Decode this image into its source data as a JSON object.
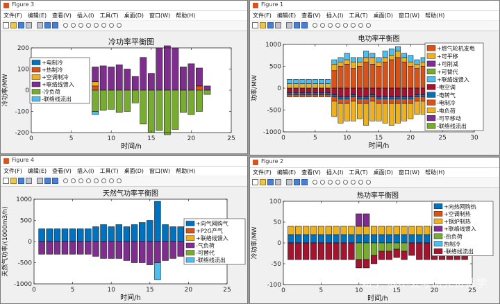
{
  "menu_items": [
    "文件(F)",
    "编辑(E)",
    "查看(V)",
    "插入(I)",
    "工具(T)",
    "桌面(D)",
    "窗口(W)",
    "帮助(H)"
  ],
  "watermark": "知乎 @不会考研元贾数学",
  "colors": {
    "blue": "#0072bd",
    "orange": "#d95319",
    "yellow": "#edb120",
    "purple": "#7e2f8e",
    "green": "#77ac30",
    "cyan": "#4dbeee",
    "red": "#a2142f"
  },
  "windows": [
    {
      "id": "fig3",
      "title": "Figure 3",
      "chart_data": {
        "type": "bar",
        "stacked": true,
        "title": "冷功率平衡图",
        "xlabel": "时间/h",
        "ylabel": "冷功率/MW",
        "xlim": [
          0,
          25
        ],
        "ylim": [
          -200,
          200
        ],
        "xticks": [
          0,
          5,
          10,
          15,
          20,
          25
        ],
        "yticks": [
          -200,
          -100,
          0,
          100,
          200
        ],
        "legend_position": "top-left",
        "x": [
          8,
          9,
          10,
          11,
          12,
          13,
          14,
          15,
          16,
          17,
          18,
          19,
          20,
          21,
          22
        ],
        "series": [
          {
            "name": "+电制冷",
            "color": "blue",
            "values": [
              0,
              0,
              0,
              0,
              0,
              0,
              0,
              0,
              0,
              0,
              0,
              0,
              0,
              0,
              0
            ]
          },
          {
            "name": "+热制冷",
            "color": "orange",
            "values": [
              20,
              0,
              0,
              0,
              0,
              0,
              0,
              0,
              0,
              0,
              0,
              0,
              0,
              20,
              0
            ]
          },
          {
            "name": "+空调制冷",
            "color": "yellow",
            "values": [
              20,
              0,
              0,
              0,
              0,
              0,
              0,
              0,
              0,
              0,
              0,
              0,
              0,
              0,
              0
            ]
          },
          {
            "name": "+联络线馈入",
            "color": "purple",
            "values": [
              70,
              115,
              110,
              120,
              100,
              65,
              155,
              80,
              200,
              210,
              200,
              110,
              125,
              85,
              20
            ]
          },
          {
            "name": "-冷负荷",
            "color": "green",
            "values": [
              -100,
              -95,
              -90,
              -105,
              -100,
              -60,
              -160,
              -200,
              -190,
              -210,
              -185,
              -105,
              -115,
              -100,
              -20
            ]
          },
          {
            "name": "-联络线流出",
            "color": "cyan",
            "values": [
              -15,
              0,
              0,
              0,
              0,
              0,
              0,
              0,
              0,
              0,
              0,
              0,
              0,
              0,
              0
            ]
          }
        ]
      }
    },
    {
      "id": "fig1",
      "title": "Figure 1",
      "chart_data": {
        "type": "bar",
        "stacked": true,
        "title": "电功率平衡图",
        "xlabel": "时间/h",
        "ylabel": "功率/MW",
        "xlim": [
          0,
          30
        ],
        "ylim": [
          -1000,
          1000
        ],
        "xticks": [
          0,
          5,
          10,
          15,
          20,
          25,
          30
        ],
        "yticks": [
          -1000,
          -500,
          0,
          500,
          1000
        ],
        "legend_position": "right",
        "x": [
          1,
          2,
          3,
          4,
          5,
          6,
          7,
          8,
          9,
          10,
          11,
          12,
          13,
          14,
          15,
          16,
          17,
          18,
          19,
          20,
          21,
          22,
          23,
          24
        ],
        "series": [
          {
            "name": "+燃气轮机发电",
            "color": "orange",
            "values": [
              0,
              0,
              0,
              0,
              0,
              0,
              0,
              400,
              500,
              550,
              450,
              500,
              600,
              550,
              500,
              600,
              650,
              700,
              600,
              500,
              450,
              500,
              0,
              0
            ]
          },
          {
            "name": "+可平移",
            "color": "yellow",
            "values": [
              100,
              100,
              100,
              100,
              100,
              100,
              100,
              150,
              100,
              100,
              150,
              100,
              100,
              150,
              100,
              100,
              100,
              150,
              100,
              100,
              100,
              100,
              50,
              0
            ]
          },
          {
            "name": "+可削减",
            "color": "purple",
            "values": [
              0,
              0,
              0,
              0,
              0,
              0,
              0,
              0,
              0,
              0,
              0,
              0,
              0,
              0,
              0,
              0,
              0,
              0,
              0,
              0,
              0,
              0,
              0,
              0
            ]
          },
          {
            "name": "+可替代",
            "color": "green",
            "values": [
              0,
              0,
              0,
              0,
              0,
              0,
              0,
              0,
              0,
              0,
              0,
              0,
              0,
              0,
              0,
              0,
              0,
              0,
              0,
              0,
              0,
              0,
              0,
              0
            ]
          },
          {
            "name": "+联络线馈入",
            "color": "cyan",
            "values": [
              100,
              100,
              100,
              100,
              100,
              100,
              100,
              100,
              100,
              150,
              100,
              100,
              150,
              100,
              100,
              150,
              150,
              100,
              100,
              150,
              100,
              100,
              100,
              0
            ]
          },
          {
            "name": "-电空调",
            "color": "red",
            "values": [
              -100,
              -100,
              -100,
              -100,
              -100,
              -100,
              -100,
              -150,
              -200,
              -200,
              -150,
              -200,
              -200,
              -150,
              -200,
              -200,
              -200,
              -200,
              -200,
              -200,
              -150,
              -150,
              -50,
              0
            ]
          },
          {
            "name": "-电转气",
            "color": "blue",
            "values": [
              -50,
              -50,
              -50,
              -50,
              -50,
              -50,
              -50,
              -50,
              -50,
              -50,
              -50,
              -50,
              -50,
              -50,
              -50,
              -50,
              -50,
              -50,
              -50,
              -50,
              -50,
              -50,
              -50,
              0
            ]
          },
          {
            "name": "-电制冷",
            "color": "orange",
            "values": [
              -50,
              -50,
              -50,
              -50,
              -50,
              -50,
              -50,
              -100,
              -100,
              -100,
              -100,
              -100,
              -100,
              -100,
              -100,
              -100,
              -100,
              -100,
              -100,
              -100,
              -100,
              -100,
              -50,
              0
            ]
          },
          {
            "name": "-电负荷",
            "color": "yellow",
            "values": [
              0,
              0,
              0,
              0,
              0,
              0,
              0,
              -350,
              -450,
              -400,
              -450,
              -350,
              -500,
              -450,
              -400,
              -450,
              -500,
              -450,
              -400,
              -350,
              -300,
              -300,
              0,
              0
            ]
          },
          {
            "name": "-可平移动",
            "color": "purple",
            "values": [
              0,
              0,
              0,
              0,
              0,
              0,
              0,
              0,
              0,
              0,
              0,
              0,
              0,
              0,
              0,
              0,
              0,
              0,
              0,
              0,
              0,
              0,
              0,
              0
            ]
          },
          {
            "name": "-联络线流出",
            "color": "green",
            "values": [
              0,
              0,
              0,
              0,
              0,
              0,
              0,
              0,
              0,
              0,
              0,
              0,
              0,
              0,
              0,
              0,
              0,
              0,
              0,
              0,
              0,
              0,
              0,
              0
            ]
          }
        ]
      }
    },
    {
      "id": "fig4",
      "title": "Figure 4",
      "chart_data": {
        "type": "bar",
        "stacked": true,
        "title": "天然气功率平衡图",
        "xlabel": "时间/h",
        "ylabel": "天然气功率/(1000m3/h)",
        "xlim": [
          0,
          25
        ],
        "ylim": [
          -1000,
          1000
        ],
        "xticks": [
          0,
          5,
          10,
          15,
          20,
          25
        ],
        "yticks": [
          -1000,
          -500,
          0,
          500,
          1000
        ],
        "legend_position": "top-right",
        "x": [
          1,
          2,
          3,
          4,
          5,
          6,
          7,
          8,
          9,
          10,
          11,
          12,
          13,
          14,
          15,
          16,
          17,
          18,
          19,
          20,
          21,
          22,
          23,
          24
        ],
        "series": [
          {
            "name": "+向气网购气",
            "color": "blue",
            "values": [
              300,
              300,
              300,
              300,
              300,
              300,
              300,
              350,
              400,
              350,
              400,
              350,
              400,
              450,
              500,
              950,
              400,
              350,
              350,
              400,
              350,
              300,
              300,
              300
            ]
          },
          {
            "name": "+P2G产气",
            "color": "orange",
            "values": [
              0,
              0,
              0,
              0,
              0,
              0,
              0,
              0,
              0,
              0,
              0,
              0,
              0,
              0,
              0,
              0,
              0,
              0,
              0,
              0,
              0,
              0,
              0,
              0
            ]
          },
          {
            "name": "+联络线馈入",
            "color": "yellow",
            "values": [
              0,
              0,
              0,
              0,
              0,
              0,
              0,
              0,
              0,
              0,
              0,
              0,
              0,
              0,
              0,
              0,
              0,
              0,
              0,
              0,
              0,
              0,
              0,
              0
            ]
          },
          {
            "name": "-气负荷",
            "color": "purple",
            "values": [
              -300,
              -300,
              -300,
              -300,
              -300,
              -300,
              -300,
              -350,
              -400,
              -400,
              -400,
              -450,
              -500,
              -500,
              -550,
              -500,
              -450,
              -400,
              -350,
              -350,
              -300,
              -300,
              -150,
              -150
            ]
          },
          {
            "name": "-可替代",
            "color": "green",
            "values": [
              0,
              0,
              0,
              0,
              0,
              0,
              0,
              0,
              0,
              0,
              0,
              0,
              0,
              0,
              0,
              0,
              0,
              0,
              0,
              0,
              0,
              0,
              0,
              0
            ]
          },
          {
            "name": "-联络线流出",
            "color": "cyan",
            "values": [
              0,
              0,
              0,
              0,
              0,
              0,
              0,
              0,
              0,
              0,
              0,
              0,
              0,
              0,
              0,
              -400,
              0,
              0,
              0,
              0,
              -150,
              -150,
              -200,
              -150
            ]
          }
        ]
      }
    },
    {
      "id": "fig2",
      "title": "Figure 2",
      "chart_data": {
        "type": "bar",
        "stacked": true,
        "title": "热功率平衡图",
        "xlabel": "时间/h",
        "ylabel": "冷功率/MW",
        "xlim": [
          0,
          25
        ],
        "ylim": [
          -100,
          100
        ],
        "xticks": [
          0,
          5,
          10,
          15,
          20,
          25
        ],
        "yticks": [
          -100,
          -50,
          0,
          50,
          100
        ],
        "legend_position": "right",
        "x": [
          1,
          2,
          3,
          4,
          5,
          6,
          7,
          8,
          9,
          10,
          11,
          12,
          13,
          14,
          15,
          16,
          17,
          18,
          19,
          20,
          21,
          22,
          23,
          24
        ],
        "series": [
          {
            "name": "+向热网购热",
            "color": "blue",
            "values": [
              20,
              20,
              20,
              20,
              20,
              20,
              20,
              20,
              20,
              20,
              20,
              20,
              20,
              20,
              20,
              20,
              20,
              20,
              20,
              20,
              20,
              20,
              20,
              20
            ]
          },
          {
            "name": "+空调制热",
            "color": "orange",
            "values": [
              0,
              0,
              0,
              0,
              0,
              0,
              0,
              0,
              0,
              0,
              0,
              0,
              0,
              0,
              0,
              0,
              0,
              0,
              0,
              0,
              0,
              0,
              0,
              0
            ]
          },
          {
            "name": "+锅炉制热",
            "color": "yellow",
            "values": [
              20,
              20,
              20,
              20,
              20,
              20,
              20,
              20,
              20,
              20,
              20,
              20,
              20,
              20,
              20,
              20,
              20,
              20,
              20,
              20,
              20,
              20,
              20,
              20
            ]
          },
          {
            "name": "+联络线馈入",
            "color": "purple",
            "values": [
              0,
              0,
              0,
              0,
              0,
              0,
              0,
              0,
              0,
              30,
              30,
              0,
              0,
              0,
              0,
              0,
              0,
              0,
              0,
              0,
              0,
              0,
              0,
              0
            ]
          },
          {
            "name": "-热负荷",
            "color": "green",
            "values": [
              0,
              0,
              0,
              0,
              0,
              0,
              0,
              0,
              0,
              -40,
              -40,
              -30,
              -20,
              -20,
              -15,
              -20,
              0,
              0,
              0,
              0,
              0,
              0,
              0,
              0
            ]
          },
          {
            "name": "热制冷",
            "color": "cyan",
            "values": [
              0,
              0,
              0,
              0,
              0,
              0,
              0,
              0,
              0,
              0,
              0,
              0,
              0,
              0,
              0,
              0,
              0,
              0,
              0,
              0,
              0,
              0,
              0,
              0
            ]
          },
          {
            "name": "-联络线流出",
            "color": "red",
            "values": [
              -40,
              -40,
              -40,
              -40,
              -40,
              -40,
              -40,
              -40,
              -40,
              -20,
              -20,
              -20,
              -20,
              -20,
              -20,
              -20,
              -30,
              -40,
              -40,
              -40,
              -40,
              -40,
              -40,
              -40
            ]
          }
        ]
      }
    }
  ]
}
